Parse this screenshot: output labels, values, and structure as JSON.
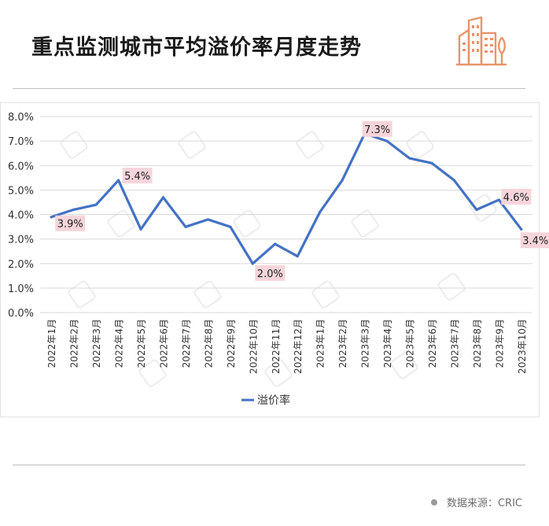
{
  "page": {
    "title": "重点监测城市平均溢价率月度走势",
    "source": "数据来源：CRIC"
  },
  "colors": {
    "line": "#4472c4",
    "label_bg": "#f5d5db",
    "logo": "#e8956a",
    "watermark": "#ececec"
  },
  "chart_data": {
    "type": "line",
    "title": "",
    "xlabel": "",
    "ylabel": "",
    "ylim": [
      0,
      8
    ],
    "yticks": [
      "0.0%",
      "1.0%",
      "2.0%",
      "3.0%",
      "4.0%",
      "5.0%",
      "6.0%",
      "7.0%",
      "8.0%"
    ],
    "grid": true,
    "legend": "bottom-center",
    "categories": [
      "2022年1月",
      "2022年2月",
      "2022年3月",
      "2022年4月",
      "2022年5月",
      "2022年6月",
      "2022年7月",
      "2022年8月",
      "2022年9月",
      "2022年10月",
      "2022年11月",
      "2022年12月",
      "2023年1月",
      "2023年2月",
      "2023年3月",
      "2023年4月",
      "2023年5月",
      "2023年6月",
      "2023年7月",
      "2023年8月",
      "2023年9月",
      "2023年10月"
    ],
    "series": [
      {
        "name": "溢价率",
        "values": [
          3.9,
          4.2,
          4.4,
          5.4,
          3.4,
          4.7,
          3.5,
          3.8,
          3.5,
          2.0,
          2.8,
          2.3,
          4.1,
          5.4,
          7.3,
          7.0,
          6.3,
          6.1,
          5.4,
          4.2,
          4.6,
          3.4
        ]
      }
    ],
    "data_labels": [
      {
        "index": 0,
        "text": "3.9%"
      },
      {
        "index": 3,
        "text": "5.4%"
      },
      {
        "index": 9,
        "text": "2.0%"
      },
      {
        "index": 14,
        "text": "7.3%"
      },
      {
        "index": 20,
        "text": "4.6%"
      },
      {
        "index": 21,
        "text": "3.4%"
      }
    ]
  }
}
